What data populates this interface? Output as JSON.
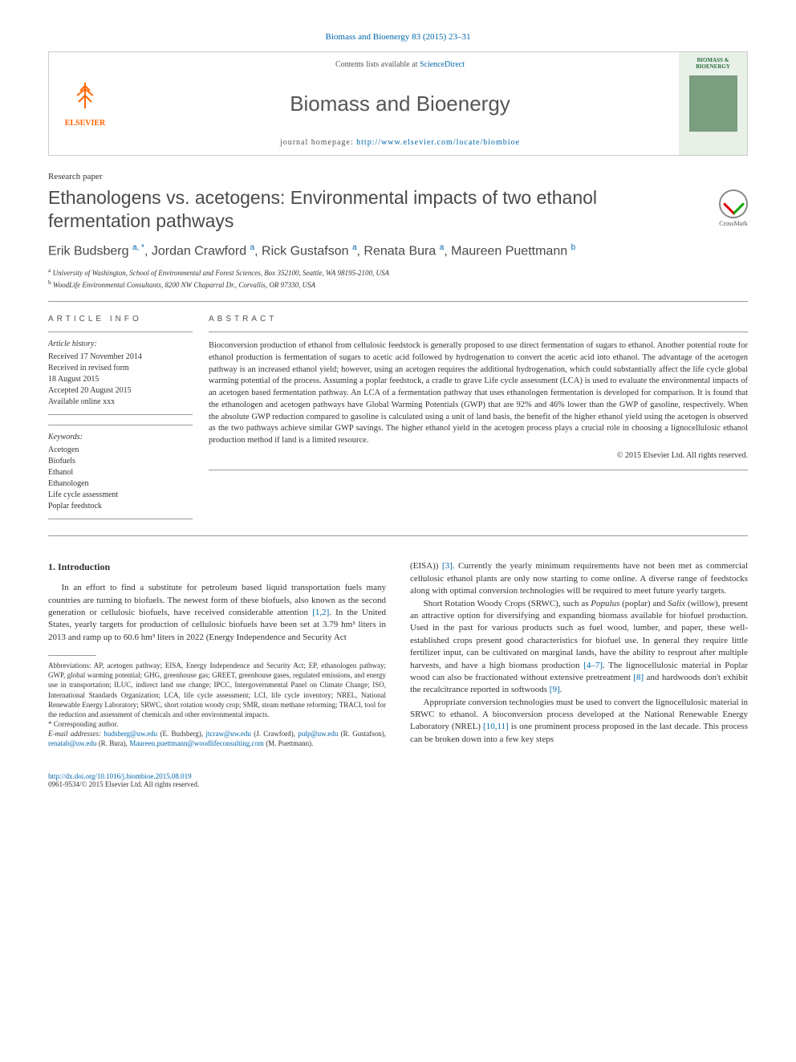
{
  "citation": "Biomass and Bioenergy 83 (2015) 23–31",
  "header": {
    "contents_prefix": "Contents lists available at ",
    "contents_link": "ScienceDirect",
    "journal_name": "Biomass and Bioenergy",
    "homepage_prefix": "journal homepage: ",
    "homepage_url": "http://www.elsevier.com/locate/biombioe",
    "publisher": "ELSEVIER",
    "cover_title": "BIOMASS & BIOENERGY"
  },
  "article_type": "Research paper",
  "title": "Ethanologens vs. acetogens: Environmental impacts of two ethanol fermentation pathways",
  "crossmark_label": "CrossMark",
  "authors_html": "Erik Budsberg <sup>a, *</sup>, Jordan Crawford <sup>a</sup>, Rick Gustafson <sup>a</sup>, Renata Bura <sup>a</sup>, Maureen Puettmann <sup>b</sup>",
  "affiliations": [
    "a University of Washington, School of Environmental and Forest Sciences, Box 352100, Seattle, WA 98195-2100, USA",
    "b WoodLife Environmental Consultants, 8200 NW Chaparral Dr., Corvallis, OR 97330, USA"
  ],
  "article_info_label": "ARTICLE INFO",
  "abstract_label": "ABSTRACT",
  "history": {
    "label": "Article history:",
    "lines": [
      "Received 17 November 2014",
      "Received in revised form",
      "18 August 2015",
      "Accepted 20 August 2015",
      "Available online xxx"
    ]
  },
  "keywords": {
    "label": "Keywords:",
    "items": [
      "Acetogen",
      "Biofuels",
      "Ethanol",
      "Ethanologen",
      "Life cycle assessment",
      "Poplar feedstock"
    ]
  },
  "abstract": "Bioconversion production of ethanol from cellulosic feedstock is generally proposed to use direct fermentation of sugars to ethanol. Another potential route for ethanol production is fermentation of sugars to acetic acid followed by hydrogenation to convert the acetic acid into ethanol. The advantage of the acetogen pathway is an increased ethanol yield; however, using an acetogen requires the additional hydrogenation, which could substantially affect the life cycle global warming potential of the process. Assuming a poplar feedstock, a cradle to grave Life cycle assessment (LCA) is used to evaluate the environmental impacts of an acetogen based fermentation pathway. An LCA of a fermentation pathway that uses ethanologen fermentation is developed for comparison. It is found that the ethanologen and acetogen pathways have Global Warming Potentials (GWP) that are 92% and 46% lower than the GWP of gasoline, respectively. When the absolute GWP reduction compared to gasoline is calculated using a unit of land basis, the benefit of the higher ethanol yield using the acetogen is observed as the two pathways achieve similar GWP savings. The higher ethanol yield in the acetogen process plays a crucial role in choosing a lignocellulosic ethanol production method if land is a limited resource.",
  "copyright": "© 2015 Elsevier Ltd. All rights reserved.",
  "section1_heading": "1. Introduction",
  "col1_p1": "In an effort to find a substitute for petroleum based liquid transportation fuels many countries are turning to biofuels. The newest form of these biofuels, also known as the second generation or cellulosic biofuels, have received considerable attention [1,2]. In the United States, yearly targets for production of cellulosic biofuels have been set at 3.79 hm³ liters in 2013 and ramp up to 60.6 hm³ liters in 2022 (Energy Independence and Security Act",
  "col2_p1": "(EISA)) [3]. Currently the yearly minimum requirements have not been met as commercial cellulosic ethanol plants are only now starting to come online. A diverse range of feedstocks along with optimal conversion technologies will be required to meet future yearly targets.",
  "col2_p2": "Short Rotation Woody Crops (SRWC), such as Populus (poplar) and Salix (willow), present an attractive option for diversifying and expanding biomass available for biofuel production. Used in the past for various products such as fuel wood, lumber, and paper, these well-established crops present good characteristics for biofuel use. In general they require little fertilizer input, can be cultivated on marginal lands, have the ability to resprout after multiple harvests, and have a high biomass production [4–7]. The lignocellulosic material in Poplar wood can also be fractionated without extensive pretreatment [8] and hardwoods don't exhibit the recalcitrance reported in softwoods [9].",
  "col2_p3": "Appropriate conversion technologies must be used to convert the lignocellulosic material in SRWC to ethanol. A bioconversion process developed at the National Renewable Energy Laboratory (NREL) [10,11] is one prominent process proposed in the last decade. This process can be broken down into a few key steps",
  "abbreviations": "Abbreviations: AP, acetogen pathway; EISA, Energy Independence and Security Act; EP, ethanologen pathway; GWP, global warming potential; GHG, greenhouse gas; GREET, greenhouse gases, regulated emissions, and energy use in transportation; ILUC, indirect land use change; IPCC, Intergovernmental Panel on Climate Change; ISO, International Standards Organization; LCA, life cycle assessment; LCI, life cycle inventory; NREL, National Renewable Energy Laboratory; SRWC, short rotation woody crop; SMR, steam methane reforming; TRACI, tool for the reduction and assessment of chemicals and other environmental impacts.",
  "corresponding": "* Corresponding author.",
  "emails_label": "E-mail addresses:",
  "emails": "budsberg@uw.edu (E. Budsberg), jtcraw@uw.edu (J. Crawford), pulp@uw.edu (R. Gustafson), renatab@uw.edu (R. Bura), Maureen.puettmann@woodlifeconsulting.com (M. Puettmann).",
  "doi": "http://dx.doi.org/10.1016/j.biombioe.2015.08.019",
  "issn": "0961-9534/© 2015 Elsevier Ltd. All rights reserved.",
  "refs": {
    "r12": "[1,2]",
    "r3": "[3]",
    "r47": "[4–7]",
    "r8": "[8]",
    "r9": "[9]",
    "r1011": "[10,11]"
  }
}
